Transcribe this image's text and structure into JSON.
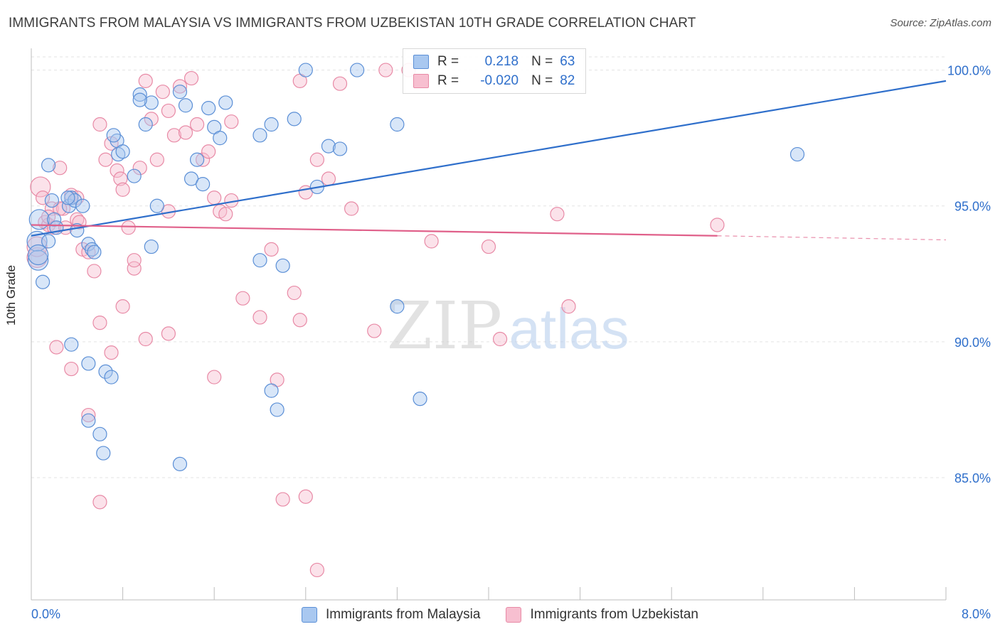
{
  "title": "IMMIGRANTS FROM MALAYSIA VS IMMIGRANTS FROM UZBEKISTAN 10TH GRADE CORRELATION CHART",
  "source": "Source: ZipAtlas.com",
  "watermark": {
    "zip": "ZIP",
    "atlas": "atlas"
  },
  "colors": {
    "malaysia_fill": "#a9c8f0",
    "malaysia_stroke": "#5b8fd6",
    "malaysia_line": "#2f6fcb",
    "uzbekistan_fill": "#f7bfd0",
    "uzbekistan_stroke": "#e88aa6",
    "uzbekistan_line": "#e0608a",
    "tick_text": "#2f6fcb",
    "grid": "#e3e3e3"
  },
  "legend": {
    "rows": [
      {
        "r_label": "R =",
        "r_value": "0.218",
        "n_label": "N =",
        "n_value": "63"
      },
      {
        "r_label": "R =",
        "r_value": "-0.020",
        "n_label": "N =",
        "n_value": "82"
      }
    ]
  },
  "chart_data": {
    "type": "scatter",
    "title": "IMMIGRANTS FROM MALAYSIA VS IMMIGRANTS FROM UZBEKISTAN 10TH GRADE CORRELATION CHART",
    "xlabel": "",
    "ylabel": "10th Grade",
    "xlim": [
      0,
      8
    ],
    "ylim": [
      80.5,
      100.8
    ],
    "x_tick_labels": [
      "0.0%",
      "8.0%"
    ],
    "y_ticks": [
      85,
      90,
      95,
      100
    ],
    "y_tick_labels": [
      "85.0%",
      "90.0%",
      "95.0%",
      "100.0%"
    ],
    "grid": true,
    "legend_position": "top-center",
    "series": [
      {
        "name": "Immigrants from Malaysia",
        "trend": {
          "x": [
            0.0,
            8.0
          ],
          "y": [
            93.9,
            99.6
          ]
        },
        "points": [
          [
            0.05,
            93.7
          ],
          [
            0.06,
            93.0
          ],
          [
            0.1,
            92.2
          ],
          [
            0.07,
            94.5
          ],
          [
            0.15,
            93.7
          ],
          [
            0.18,
            95.2
          ],
          [
            0.2,
            94.5
          ],
          [
            0.22,
            94.2
          ],
          [
            0.33,
            95.0
          ],
          [
            0.35,
            95.3
          ],
          [
            0.38,
            95.2
          ],
          [
            0.4,
            94.1
          ],
          [
            0.45,
            95.0
          ],
          [
            0.5,
            93.6
          ],
          [
            0.53,
            93.4
          ],
          [
            0.55,
            93.3
          ],
          [
            0.32,
            95.3
          ],
          [
            0.15,
            96.5
          ],
          [
            0.35,
            89.9
          ],
          [
            0.5,
            89.2
          ],
          [
            0.65,
            88.9
          ],
          [
            0.7,
            88.7
          ],
          [
            0.6,
            86.6
          ],
          [
            0.63,
            85.9
          ],
          [
            0.5,
            87.1
          ],
          [
            0.75,
            97.4
          ],
          [
            0.72,
            97.6
          ],
          [
            0.76,
            96.9
          ],
          [
            0.9,
            96.1
          ],
          [
            0.95,
            99.1
          ],
          [
            1.0,
            98.0
          ],
          [
            1.05,
            98.8
          ],
          [
            0.95,
            98.9
          ],
          [
            1.1,
            95.0
          ],
          [
            1.05,
            93.5
          ],
          [
            1.3,
            99.2
          ],
          [
            1.35,
            98.7
          ],
          [
            1.4,
            96.0
          ],
          [
            1.45,
            96.7
          ],
          [
            1.55,
            98.6
          ],
          [
            1.6,
            97.9
          ],
          [
            1.65,
            97.5
          ],
          [
            1.7,
            98.8
          ],
          [
            1.5,
            95.8
          ],
          [
            1.3,
            85.5
          ],
          [
            2.0,
            97.6
          ],
          [
            2.1,
            98.0
          ],
          [
            2.3,
            98.2
          ],
          [
            2.4,
            100.0
          ],
          [
            2.5,
            95.7
          ],
          [
            2.6,
            97.2
          ],
          [
            2.7,
            97.1
          ],
          [
            2.85,
            100.0
          ],
          [
            2.0,
            93.0
          ],
          [
            2.2,
            92.8
          ],
          [
            2.1,
            88.2
          ],
          [
            2.15,
            87.5
          ],
          [
            3.2,
            98.0
          ],
          [
            3.2,
            91.3
          ],
          [
            3.4,
            87.9
          ],
          [
            6.7,
            96.9
          ],
          [
            0.06,
            93.2
          ],
          [
            0.8,
            97.0
          ]
        ]
      },
      {
        "name": "Immigrants from Uzbekistan",
        "trend": {
          "x": [
            0.0,
            6.0
          ],
          "y": [
            94.3,
            93.9
          ]
        },
        "trend_dashed": {
          "x": [
            6.0,
            8.0
          ],
          "y": [
            93.9,
            93.75
          ]
        },
        "points": [
          [
            0.08,
            95.7
          ],
          [
            0.1,
            95.3
          ],
          [
            0.12,
            94.4
          ],
          [
            0.15,
            94.3
          ],
          [
            0.18,
            94.9
          ],
          [
            0.2,
            94.2
          ],
          [
            0.25,
            96.4
          ],
          [
            0.28,
            94.9
          ],
          [
            0.3,
            94.2
          ],
          [
            0.35,
            95.4
          ],
          [
            0.4,
            94.5
          ],
          [
            0.42,
            94.4
          ],
          [
            0.45,
            93.4
          ],
          [
            0.5,
            93.3
          ],
          [
            0.55,
            92.6
          ],
          [
            0.6,
            98.0
          ],
          [
            0.65,
            96.7
          ],
          [
            0.7,
            97.3
          ],
          [
            0.75,
            96.3
          ],
          [
            0.78,
            96.0
          ],
          [
            0.8,
            95.6
          ],
          [
            0.85,
            94.2
          ],
          [
            0.9,
            92.7
          ],
          [
            0.95,
            96.4
          ],
          [
            1.0,
            99.6
          ],
          [
            1.05,
            98.2
          ],
          [
            1.1,
            96.7
          ],
          [
            1.15,
            99.2
          ],
          [
            1.2,
            98.5
          ],
          [
            1.25,
            97.6
          ],
          [
            1.3,
            99.4
          ],
          [
            1.35,
            97.7
          ],
          [
            1.4,
            99.7
          ],
          [
            1.45,
            98.0
          ],
          [
            1.5,
            96.7
          ],
          [
            1.55,
            97.0
          ],
          [
            1.6,
            95.3
          ],
          [
            1.65,
            94.8
          ],
          [
            1.7,
            94.7
          ],
          [
            1.75,
            98.1
          ],
          [
            0.22,
            89.8
          ],
          [
            0.35,
            89.0
          ],
          [
            0.5,
            87.3
          ],
          [
            0.6,
            90.7
          ],
          [
            0.7,
            89.6
          ],
          [
            0.8,
            91.3
          ],
          [
            1.0,
            90.1
          ],
          [
            1.2,
            90.3
          ],
          [
            1.6,
            88.7
          ],
          [
            1.85,
            91.6
          ],
          [
            2.0,
            90.9
          ],
          [
            2.1,
            93.4
          ],
          [
            2.15,
            88.6
          ],
          [
            2.3,
            91.8
          ],
          [
            2.35,
            90.8
          ],
          [
            2.4,
            95.5
          ],
          [
            2.5,
            96.7
          ],
          [
            2.6,
            96.0
          ],
          [
            2.7,
            99.5
          ],
          [
            2.8,
            94.9
          ],
          [
            3.0,
            90.4
          ],
          [
            3.1,
            100.0
          ],
          [
            3.3,
            100.0
          ],
          [
            3.5,
            93.7
          ],
          [
            4.0,
            93.5
          ],
          [
            4.1,
            90.1
          ],
          [
            4.6,
            94.7
          ],
          [
            4.7,
            91.3
          ],
          [
            6.0,
            94.3
          ],
          [
            0.6,
            84.1
          ],
          [
            2.2,
            84.2
          ],
          [
            2.4,
            84.3
          ],
          [
            2.5,
            81.6
          ],
          [
            1.2,
            94.8
          ],
          [
            0.9,
            93.0
          ],
          [
            0.25,
            94.9
          ],
          [
            0.15,
            94.6
          ],
          [
            0.05,
            93.1
          ],
          [
            0.05,
            93.5
          ],
          [
            1.75,
            95.2
          ],
          [
            2.35,
            99.6
          ],
          [
            0.4,
            95.3
          ]
        ]
      }
    ]
  }
}
